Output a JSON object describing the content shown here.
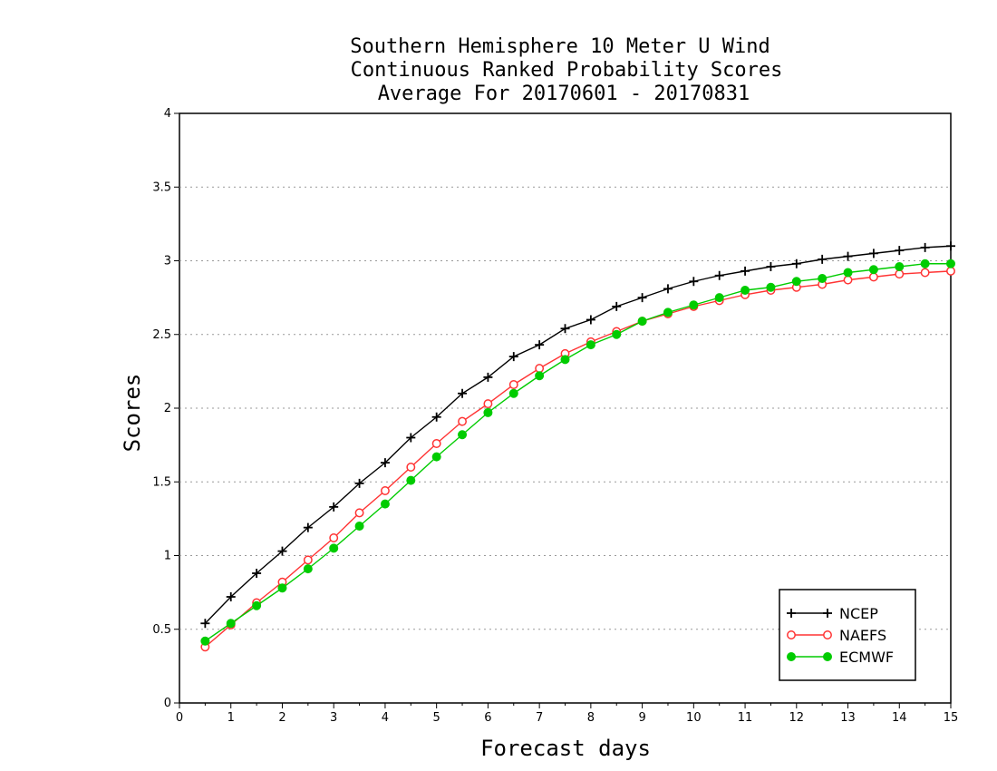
{
  "chart_data": {
    "type": "line",
    "title_lines": [
      "Southern Hemisphere 10 Meter U Wind",
      "Continuous Ranked Probability Scores",
      "Average For 20170601 - 20170831"
    ],
    "xlabel": "Forecast days",
    "ylabel": "Scores",
    "xlim": [
      0,
      15
    ],
    "ylim": [
      0,
      4
    ],
    "x_ticks": [
      0,
      1,
      2,
      3,
      4,
      5,
      6,
      7,
      8,
      9,
      10,
      11,
      12,
      13,
      14,
      15
    ],
    "x_tick_labels": [
      "0",
      "1",
      "2",
      "3",
      "4",
      "5",
      "6",
      "7",
      "8",
      "9",
      "10",
      "11",
      "12",
      "13",
      "14",
      "15"
    ],
    "y_ticks": [
      0,
      0.5,
      1,
      1.5,
      2,
      2.5,
      3,
      3.5,
      4
    ],
    "y_tick_labels": [
      "0",
      "0.5",
      "1",
      "1.5",
      "2",
      "2.5",
      "3",
      "3.5",
      "4"
    ],
    "grid": "horizontal dotted",
    "legend_position": "bottom-right",
    "x": [
      0.5,
      1,
      1.5,
      2,
      2.5,
      3,
      3.5,
      4,
      4.5,
      5,
      5.5,
      6,
      6.5,
      7,
      7.5,
      8,
      8.5,
      9,
      9.5,
      10,
      10.5,
      11,
      11.5,
      12,
      12.5,
      13,
      13.5,
      14,
      14.5,
      15
    ],
    "series": [
      {
        "name": "NCEP",
        "color": "#000000",
        "marker": "plus",
        "values": [
          0.54,
          0.72,
          0.88,
          1.03,
          1.19,
          1.33,
          1.49,
          1.63,
          1.8,
          1.94,
          2.1,
          2.21,
          2.35,
          2.43,
          2.54,
          2.6,
          2.69,
          2.75,
          2.81,
          2.86,
          2.9,
          2.93,
          2.96,
          2.98,
          3.01,
          3.03,
          3.05,
          3.07,
          3.09,
          3.1
        ]
      },
      {
        "name": "NAEFS",
        "color": "#ff3333",
        "marker": "open-circle",
        "values": [
          0.38,
          0.53,
          0.68,
          0.82,
          0.97,
          1.12,
          1.29,
          1.44,
          1.6,
          1.76,
          1.91,
          2.03,
          2.16,
          2.27,
          2.37,
          2.45,
          2.52,
          2.59,
          2.64,
          2.69,
          2.73,
          2.77,
          2.8,
          2.82,
          2.84,
          2.87,
          2.89,
          2.91,
          2.92,
          2.93
        ]
      },
      {
        "name": "ECMWF",
        "color": "#00cc00",
        "marker": "filled-circle",
        "values": [
          0.42,
          0.54,
          0.66,
          0.78,
          0.91,
          1.05,
          1.2,
          1.35,
          1.51,
          1.67,
          1.82,
          1.97,
          2.1,
          2.22,
          2.33,
          2.43,
          2.5,
          2.59,
          2.65,
          2.7,
          2.75,
          2.8,
          2.82,
          2.86,
          2.88,
          2.92,
          2.94,
          2.96,
          2.98,
          2.98
        ]
      }
    ]
  }
}
